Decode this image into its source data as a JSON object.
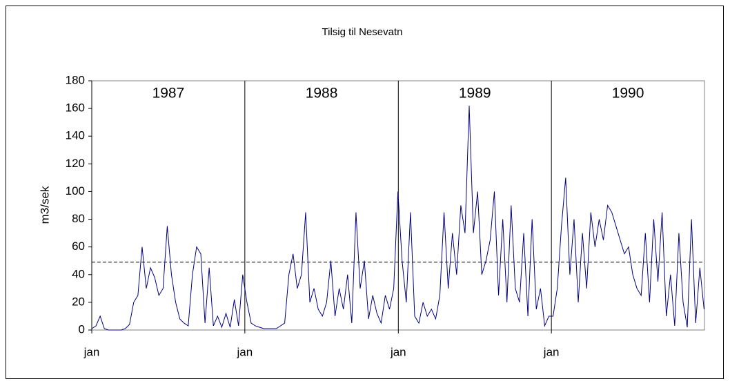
{
  "chart_data": {
    "type": "line",
    "title": "Tilsig til Nesevatn",
    "y_label": "m3/sek",
    "year_labels": [
      "1987",
      "1988",
      "1989",
      "1990"
    ],
    "x": [
      0,
      10,
      20,
      30,
      40,
      50,
      60,
      70,
      80,
      90,
      100,
      110,
      120,
      130,
      140,
      150,
      160,
      170,
      180,
      190,
      200,
      210,
      220,
      230,
      240,
      250,
      260,
      270,
      280,
      290,
      300,
      310,
      320,
      330,
      340,
      350,
      360,
      370,
      380,
      390,
      400,
      410,
      420,
      430,
      440,
      450,
      460,
      470,
      480,
      490,
      500,
      510,
      520,
      530,
      540,
      550,
      560,
      570,
      580,
      590,
      600,
      610,
      620,
      630,
      640,
      650,
      660,
      670,
      680,
      690,
      700,
      710,
      720,
      730,
      740,
      750,
      760,
      770,
      780,
      790,
      800,
      810,
      820,
      830,
      840,
      850,
      860,
      870,
      880,
      890,
      900,
      910,
      920,
      930,
      940,
      950,
      960,
      970,
      980,
      990,
      1000,
      1010,
      1020,
      1030,
      1040,
      1050,
      1060,
      1070,
      1080,
      1090,
      1100,
      1110,
      1120,
      1130,
      1140,
      1150,
      1160,
      1170,
      1180,
      1190,
      1200,
      1210,
      1220,
      1230,
      1240,
      1250,
      1260,
      1270,
      1280,
      1290,
      1300,
      1310,
      1320,
      1330,
      1340,
      1350,
      1360,
      1370,
      1380,
      1390,
      1400,
      1410,
      1420,
      1430,
      1440,
      1450,
      1460
    ],
    "values": [
      1,
      3,
      10,
      1,
      0,
      0,
      0,
      0,
      1,
      4,
      20,
      25,
      60,
      30,
      45,
      38,
      25,
      30,
      75,
      40,
      20,
      8,
      5,
      3,
      40,
      60,
      55,
      5,
      45,
      3,
      10,
      2,
      12,
      2,
      22,
      3,
      40,
      20,
      5,
      3,
      2,
      1,
      1,
      1,
      1,
      3,
      5,
      40,
      55,
      30,
      40,
      85,
      20,
      30,
      15,
      10,
      20,
      50,
      10,
      30,
      15,
      40,
      5,
      85,
      30,
      50,
      8,
      25,
      12,
      5,
      25,
      15,
      30,
      100,
      50,
      20,
      85,
      10,
      5,
      20,
      10,
      15,
      8,
      25,
      85,
      30,
      70,
      40,
      90,
      70,
      162,
      70,
      100,
      40,
      50,
      65,
      100,
      25,
      80,
      20,
      90,
      30,
      20,
      70,
      10,
      80,
      15,
      30,
      3,
      10,
      10,
      30,
      75,
      110,
      40,
      80,
      20,
      70,
      30,
      85,
      60,
      80,
      65,
      90,
      85,
      75,
      65,
      55,
      60,
      40,
      30,
      25,
      70,
      20,
      80,
      35,
      85,
      10,
      40,
      3,
      70,
      20,
      2,
      80,
      5,
      45,
      15
    ],
    "color": "#000080",
    "xlim": [
      0,
      1461
    ],
    "xticks": [
      {
        "value": 0,
        "label": "jan"
      },
      {
        "value": 365,
        "label": "jan"
      },
      {
        "value": 731,
        "label": "jan"
      },
      {
        "value": 1096,
        "label": "jan"
      }
    ],
    "ylim": [
      0,
      180
    ],
    "yticks": [
      0,
      20,
      40,
      60,
      80,
      100,
      120,
      140,
      160,
      180
    ],
    "reference_line": 49,
    "xgrid": true
  }
}
